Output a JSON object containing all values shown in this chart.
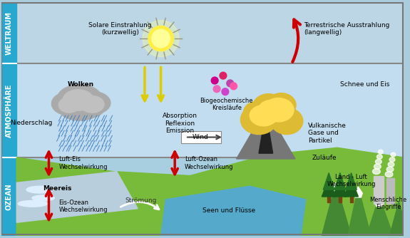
{
  "bg_weltraum": "#c0d8e8",
  "bg_atmosphaere": "#c5e0f0",
  "bg_ozean": "#aad0e8",
  "sidebar_color": "#2aabcf",
  "title_weltraum": "WELTRAUM",
  "title_atmosphaere": "ATMOSPHÄRE",
  "title_ozean": "OZEAN",
  "labels": {
    "solare": "Solare Einstrahlung\n(kurzwellig)",
    "terrestrisch": "Terrestrische Ausstrahlung\n(langwellig)",
    "wolken": "Wolken",
    "niederschlag": "Niederschlag",
    "biogeochem": "Biogeochemische\nKreisläufe",
    "absorption": "Absorption\nReflexion\nEmission",
    "wind": "Wind",
    "luft_eis": "Luft-Eis\nWechselwirkung",
    "luft_ozean": "Luft-Ozean\nWechselwirkung",
    "vulkan_gase": "Vulkanische\nGase und\nPartikel",
    "zulaeufe": "Zuläufe",
    "meereis": "Meereis",
    "stroemung": "Strömung",
    "eis_ozean": "Eis-Ozean\nWechselwirkung",
    "seen_fluesse": "Seen und Flüsse",
    "land_luft": "Land - Luft\nWechselwirkung",
    "schnee_eis": "Schnee und Eis",
    "menschliche": "Menschliche\nEingriffe"
  }
}
